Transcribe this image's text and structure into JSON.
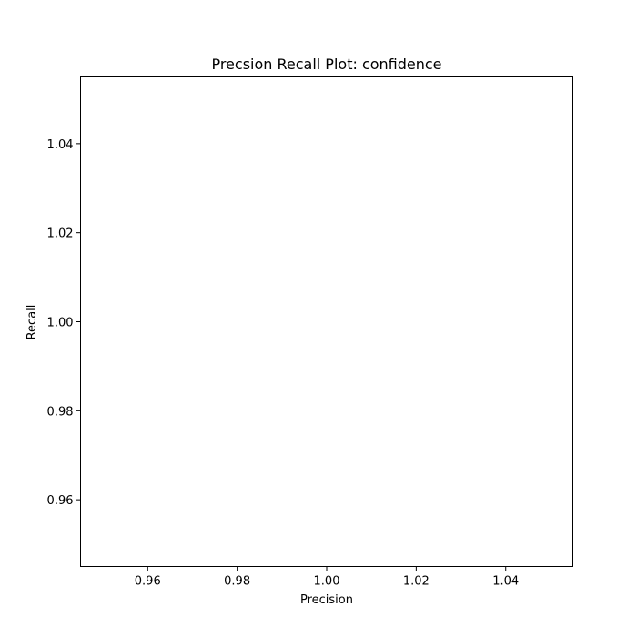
{
  "chart_data": {
    "type": "line",
    "title": "Precsion Recall Plot: confidence",
    "xlabel": "Precision",
    "ylabel": "Recall",
    "xlim": [
      0.945,
      1.055
    ],
    "ylim": [
      0.945,
      1.055
    ],
    "xticks": [
      0.96,
      0.98,
      1.0,
      1.02,
      1.04
    ],
    "xtick_labels": [
      "0.96",
      "0.98",
      "1.00",
      "1.02",
      "1.04"
    ],
    "yticks": [
      0.96,
      0.98,
      1.0,
      1.02,
      1.04
    ],
    "ytick_labels": [
      "0.96",
      "0.98",
      "1.00",
      "1.02",
      "1.04"
    ],
    "series": [],
    "grid": false,
    "colors": {
      "axes": "#000000",
      "background": "#ffffff"
    }
  }
}
